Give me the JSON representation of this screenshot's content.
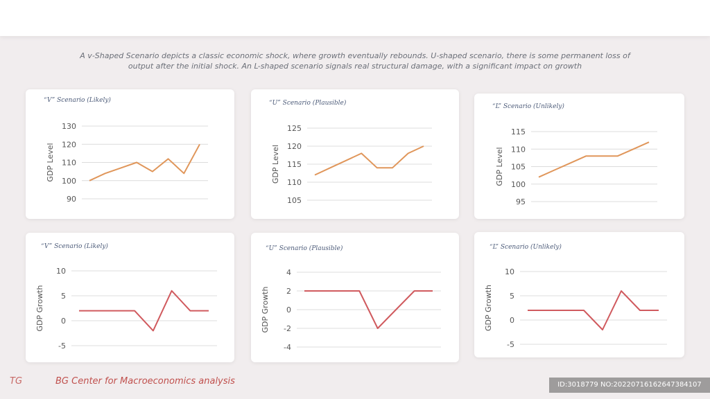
{
  "description": "A v-Shaped Scenario depicts a classic economic shock, where growth eventually rebounds. U-shaped scenario, there is some permanent loss of output after the initial shock. An L-shaped scenario signals real structural damage, with a significant impact on growth",
  "footer": {
    "prefix": "TG",
    "source": "BG Center for Macroeconomics analysis"
  },
  "watermark": "ID:3018779 NO:20220716162647384107",
  "colors": {
    "level_line": "#e0965a",
    "growth_line": "#d05a5e",
    "grid": "#dcdcdc",
    "axis_text": "#555555"
  },
  "chart_data": [
    {
      "type": "line",
      "title": "“V” Scenario (Likely)",
      "ylabel": "GDP Level",
      "xlabel": "",
      "ylim": [
        90,
        130
      ],
      "yticks": [
        90,
        100,
        110,
        120,
        130
      ],
      "values": [
        100,
        104,
        107,
        110,
        105,
        112,
        104,
        120
      ]
    },
    {
      "type": "line",
      "title": "“U” Scenario (Plausible)",
      "ylabel": "GDP Level",
      "xlabel": "",
      "ylim": [
        105,
        125
      ],
      "yticks": [
        105,
        110,
        115,
        120,
        125
      ],
      "values": [
        112,
        114,
        116,
        118,
        114,
        114,
        118,
        120
      ]
    },
    {
      "type": "line",
      "title": "“L” Scenario (Unlikely)",
      "ylabel": "GDP Level",
      "xlabel": "",
      "ylim": [
        95,
        115
      ],
      "yticks": [
        95,
        100,
        105,
        110,
        115
      ],
      "values": [
        102,
        104,
        106,
        108,
        108,
        108,
        110,
        112
      ]
    },
    {
      "type": "line",
      "title": "“V” Scenario (Likely)",
      "ylabel": "GDP Growth",
      "xlabel": "",
      "ylim": [
        -5,
        10
      ],
      "yticks": [
        -5,
        0,
        5,
        10
      ],
      "values": [
        2,
        2,
        2,
        2,
        -2,
        6,
        2,
        2
      ]
    },
    {
      "type": "line",
      "title": "“U” Scenario (Plausible)",
      "ylabel": "GDP Growth",
      "xlabel": "",
      "ylim": [
        -4,
        4
      ],
      "yticks": [
        -4,
        -2,
        0,
        2,
        4
      ],
      "values": [
        2,
        2,
        2,
        2,
        -2,
        0,
        2,
        2
      ]
    },
    {
      "type": "line",
      "title": "“L” Scenario (Unlikely)",
      "ylabel": "GDP Growth",
      "xlabel": "",
      "ylim": [
        -5,
        10
      ],
      "yticks": [
        -5,
        0,
        5,
        10
      ],
      "values": [
        2,
        2,
        2,
        2,
        -2,
        6,
        2,
        2
      ]
    }
  ]
}
